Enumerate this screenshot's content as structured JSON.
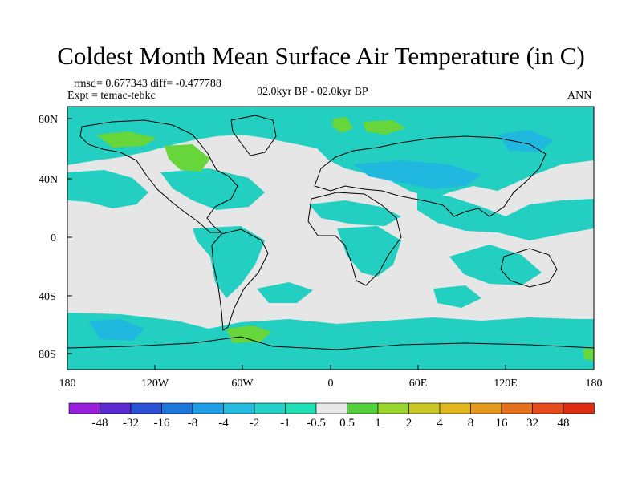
{
  "title": "Coldest Month Mean Surface Air Temperature (in C)",
  "stats_text": "rmsd= 0.677343  diff= -0.477788",
  "expt_text": "Expt = temac-tebkc",
  "period_text": "02.0kyr BP - 02.0kyr BP",
  "season_text": "ANN",
  "lat_labels": [
    "80N",
    "40N",
    "0",
    "40S",
    "80S"
  ],
  "lon_labels": [
    "180",
    "120W",
    "60W",
    "0",
    "60E",
    "120E",
    "180"
  ],
  "colorbar": {
    "levels": [
      "-48",
      "-32",
      "-16",
      "-8",
      "-4",
      "-2",
      "-1",
      "-0.5",
      "0.5",
      "1",
      "2",
      "4",
      "8",
      "16",
      "32",
      "48"
    ],
    "colors": [
      "#9a1ee0",
      "#5b28d6",
      "#2a4fd8",
      "#1a78e0",
      "#1c9ee8",
      "#20bde0",
      "#21d3c8",
      "#1fe0b4",
      "#e8e8e8",
      "#4fd23a",
      "#9ad52a",
      "#c8c820",
      "#e0b81a",
      "#e89818",
      "#e8701a",
      "#e84a18",
      "#e02c10"
    ]
  },
  "colors": {
    "ocean_background": "#e6e6e6",
    "anomaly_cool": "#22cfc0",
    "anomaly_cooler": "#21b8e0",
    "anomaly_warm": "#66d63a",
    "coastline": "#000000"
  }
}
